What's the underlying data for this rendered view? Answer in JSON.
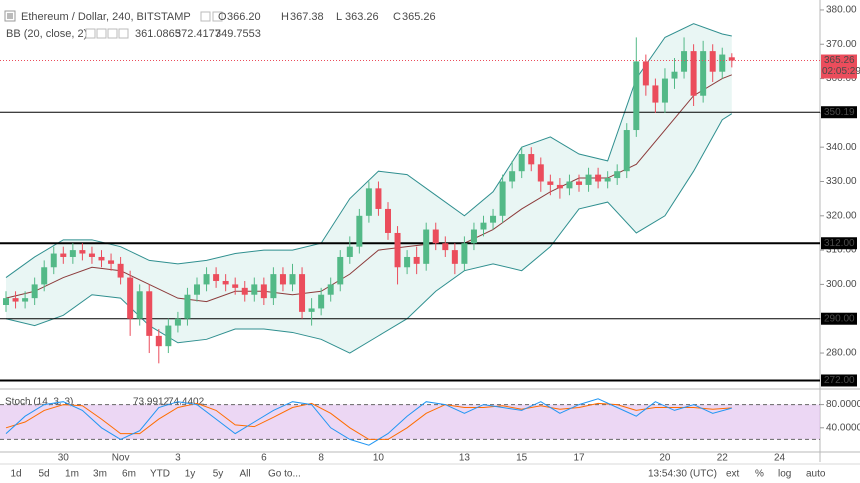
{
  "chart_data": {
    "type": "candlestick",
    "title": "Ethereum / Dollar, 240, BITSTAMP",
    "ohlc_legend": [
      {
        "key": "O",
        "value": 366.2,
        "label": "366.20"
      },
      {
        "key": "H",
        "value": 367.38,
        "label": "367.38"
      },
      {
        "key": "L",
        "value": 363.26,
        "label": "363.26"
      },
      {
        "key": "C",
        "value": 365.26,
        "label": "365.26"
      }
    ],
    "categories": [
      null,
      null,
      null,
      null,
      null,
      null,
      "30",
      null,
      null,
      null,
      null,
      null,
      "Nov",
      null,
      null,
      null,
      null,
      null,
      "3",
      null,
      null,
      null,
      null,
      null,
      null,
      null,
      null,
      "6",
      null,
      null,
      null,
      null,
      null,
      "8",
      null,
      null,
      null,
      null,
      null,
      "10",
      null,
      null,
      null,
      null,
      null,
      null,
      null,
      null,
      "13",
      null,
      null,
      null,
      null,
      null,
      "15",
      null,
      null,
      null,
      null,
      null,
      "17",
      null,
      null,
      null,
      null,
      null,
      null,
      null,
      null,
      "20",
      null,
      null,
      null,
      null,
      null,
      "22",
      null,
      null,
      null,
      null,
      null,
      "24"
    ],
    "open": [
      294,
      296,
      295,
      296,
      300,
      305,
      309,
      308,
      310,
      309,
      308,
      307,
      306,
      302,
      290,
      298,
      285,
      282,
      288,
      290,
      297,
      300,
      303,
      301,
      300,
      299,
      297,
      300,
      296,
      303,
      300,
      303,
      292,
      293,
      297,
      300,
      308,
      311,
      320,
      328,
      322,
      315,
      305,
      308,
      306,
      316,
      312,
      310,
      306,
      312,
      316,
      318,
      320,
      330,
      333,
      338,
      335,
      330,
      329,
      328,
      330,
      329,
      332,
      330,
      331,
      333,
      345,
      365,
      358,
      353,
      360,
      362,
      368,
      355,
      368,
      362,
      366.2,
      null,
      null,
      null,
      null,
      null
    ],
    "high": [
      298,
      298,
      298,
      302,
      307,
      311,
      311,
      312,
      312,
      311,
      310,
      309,
      308,
      304,
      300,
      300,
      287,
      290,
      292,
      299,
      302,
      305,
      305,
      303,
      302,
      301,
      302,
      302,
      305,
      305,
      306,
      305,
      296,
      299,
      302,
      310,
      314,
      322,
      330,
      330,
      324,
      317,
      310,
      311,
      318,
      318,
      314,
      312,
      314,
      318,
      320,
      322,
      332,
      336,
      340,
      340,
      337,
      332,
      331,
      332,
      332,
      334,
      334,
      333,
      335,
      347,
      372,
      367,
      360,
      363,
      366,
      372,
      370,
      371,
      370,
      369,
      367.38,
      null,
      null,
      null,
      null,
      null
    ],
    "low": [
      292,
      293,
      293,
      294,
      298,
      303,
      306,
      306,
      307,
      306,
      305,
      304,
      300,
      285,
      288,
      280,
      277,
      280,
      286,
      288,
      295,
      298,
      299,
      298,
      297,
      295,
      295,
      294,
      294,
      298,
      298,
      290,
      288,
      291,
      295,
      298,
      306,
      309,
      318,
      320,
      313,
      300,
      303,
      303,
      304,
      310,
      308,
      303,
      304,
      310,
      314,
      316,
      318,
      328,
      331,
      333,
      327,
      326,
      325,
      326,
      327,
      327,
      328,
      328,
      329,
      331,
      343,
      355,
      350,
      350,
      357,
      360,
      352,
      353,
      359,
      360,
      363.26,
      null,
      null,
      null,
      null,
      null
    ],
    "close": [
      296,
      295,
      296,
      300,
      305,
      309,
      308,
      310,
      309,
      308,
      307,
      306,
      302,
      290,
      298,
      285,
      282,
      288,
      290,
      297,
      300,
      303,
      301,
      300,
      299,
      297,
      300,
      296,
      303,
      300,
      303,
      292,
      293,
      297,
      300,
      308,
      311,
      320,
      328,
      322,
      315,
      305,
      308,
      306,
      316,
      312,
      310,
      306,
      312,
      316,
      318,
      320,
      330,
      333,
      338,
      335,
      330,
      329,
      328,
      330,
      329,
      332,
      330,
      331,
      333,
      345,
      365,
      358,
      353,
      360,
      362,
      368,
      355,
      368,
      362,
      367,
      365.26,
      null,
      null,
      null,
      null,
      null
    ],
    "up_color": "#53b987",
    "down_color": "#eb4d5c",
    "ylim": [
      270.1,
      382.9
    ],
    "yticks": [
      {
        "value": 280,
        "label": "280.00"
      },
      {
        "value": 290,
        "label": "290.00"
      },
      {
        "value": 300,
        "label": "300.00"
      },
      {
        "value": 310,
        "label": "310.00"
      },
      {
        "value": 320,
        "label": "320.00"
      },
      {
        "value": 330,
        "label": "330.00"
      },
      {
        "value": 340,
        "label": "340.00"
      },
      {
        "value": 350,
        "label": "350.00"
      },
      {
        "value": 360,
        "label": "360.00"
      },
      {
        "value": 370,
        "label": "370.00"
      },
      {
        "value": 380,
        "label": "380.00"
      }
    ],
    "levels": [
      {
        "value": 350.19,
        "label": "350.19",
        "style": "thin"
      },
      {
        "value": 312,
        "label": "312.00",
        "style": "thick"
      },
      {
        "value": 290,
        "label": "290.00",
        "style": "thin"
      },
      {
        "value": 272,
        "label": "272.00",
        "style": "thick"
      }
    ],
    "last_price": {
      "value": 365.26,
      "label": "365.26",
      "countdown": "02:05:29",
      "color": "#eb4d5c"
    },
    "bb": {
      "label": "BB (20, close, 2)",
      "legend_values": [
        361.0865,
        372.4177,
        349.7553
      ],
      "x": [
        0,
        3,
        6,
        9,
        12,
        15,
        18,
        21,
        24,
        27,
        30,
        33,
        36,
        39,
        42,
        45,
        48,
        51,
        54,
        57,
        60,
        63,
        66,
        69,
        72,
        75,
        76
      ],
      "basis": [
        296,
        298,
        302,
        305,
        304,
        300,
        296,
        295,
        298,
        298,
        297,
        298,
        303,
        310,
        311,
        312,
        312,
        316,
        322,
        327,
        331,
        331,
        335,
        345,
        355,
        360,
        361.0865
      ],
      "upper": [
        302,
        308,
        313,
        313,
        311,
        307,
        306,
        307,
        309,
        310,
        310,
        312,
        325,
        333,
        332,
        326,
        320,
        327,
        340,
        343,
        338,
        336,
        360,
        372,
        376,
        373,
        372.4177
      ],
      "lower": [
        290,
        288,
        291,
        297,
        296,
        288,
        283,
        284,
        287,
        287,
        286,
        284,
        280,
        285,
        290,
        298,
        304,
        306,
        304,
        311,
        322,
        324,
        315,
        320,
        333,
        348,
        349.7553
      ],
      "basis_color": "#8c3b3b",
      "band_color": "#2f8f8f",
      "fill_color": "#e9f6f4"
    },
    "stoch": {
      "label": "Stoch (14, 3, 3)",
      "legend_values": [
        73.9912,
        74.4402
      ],
      "x": [
        0,
        2,
        4,
        6,
        8,
        10,
        12,
        14,
        16,
        18,
        20,
        22,
        24,
        26,
        28,
        30,
        32,
        34,
        36,
        38,
        40,
        42,
        44,
        46,
        48,
        50,
        52,
        54,
        56,
        58,
        60,
        62,
        64,
        66,
        68,
        70,
        72,
        74,
        76
      ],
      "k": [
        30,
        60,
        80,
        85,
        70,
        40,
        20,
        35,
        75,
        85,
        80,
        55,
        30,
        50,
        70,
        85,
        80,
        40,
        20,
        10,
        30,
        60,
        85,
        80,
        65,
        80,
        75,
        70,
        85,
        65,
        80,
        90,
        75,
        60,
        85,
        70,
        80,
        65,
        73.99
      ],
      "d": [
        40,
        50,
        70,
        80,
        78,
        55,
        30,
        30,
        55,
        75,
        82,
        70,
        45,
        42,
        58,
        75,
        82,
        65,
        40,
        20,
        20,
        40,
        65,
        80,
        75,
        75,
        78,
        72,
        78,
        72,
        75,
        82,
        80,
        70,
        75,
        75,
        75,
        72,
        74.44
      ],
      "k_color": "#2196f3",
      "d_color": "#ff6d00",
      "ylim": [
        0,
        100
      ],
      "yticks": [
        {
          "value": 80,
          "label": "80.0000"
        },
        {
          "value": 40,
          "label": "40.0000"
        }
      ],
      "bands": [
        20,
        80
      ],
      "band_fill": "#e4c6f0"
    },
    "toolbar": {
      "ranges": [
        "1d",
        "5d",
        "1m",
        "3m",
        "6m",
        "YTD",
        "1y",
        "5y",
        "All"
      ],
      "goto": "Go to...",
      "time": "13:54:30 (UTC)",
      "options": [
        "ext",
        "%",
        "log",
        "auto"
      ]
    }
  }
}
